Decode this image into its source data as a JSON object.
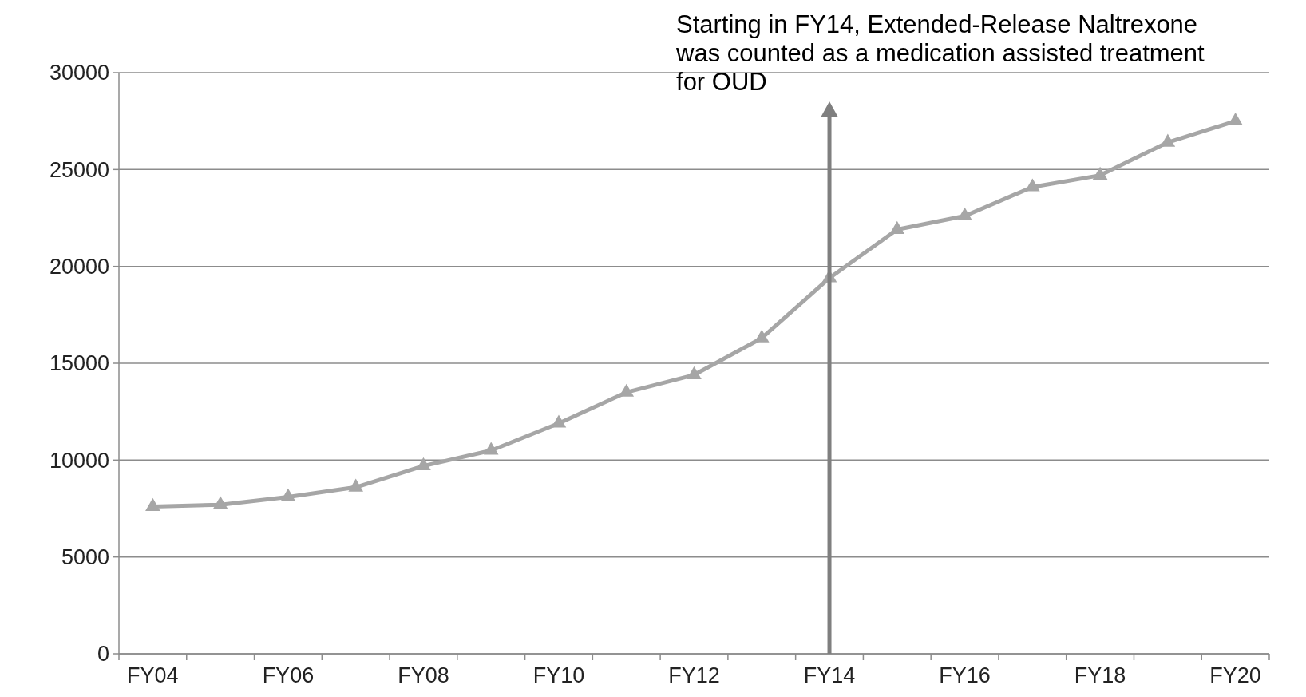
{
  "chart_data": {
    "type": "line",
    "categories": [
      "FY04",
      null,
      "FY06",
      null,
      "FY08",
      null,
      "FY10",
      null,
      "FY12",
      null,
      "FY14",
      null,
      "FY16",
      null,
      "FY18",
      null,
      "FY20"
    ],
    "series": [
      {
        "color": "#a6a6a6",
        "values": [
          7600,
          7700,
          8100,
          8600,
          9700,
          10500,
          11900,
          13500,
          14400,
          16300,
          19400,
          21900,
          22600,
          24100,
          24700,
          26400,
          27500
        ]
      }
    ],
    "ylim": [
      0,
      30000
    ],
    "yticks": [
      0,
      5000,
      10000,
      15000,
      20000,
      25000,
      30000
    ],
    "grid": "y",
    "marker": "triangle",
    "line_style": "solid",
    "ref_lines": [
      {
        "axis": "x",
        "value": "FY14",
        "color": "#7f7f7f"
      }
    ],
    "annotations": [
      "Starting in FY14, Extended-Release Naltrexone was counted as a medication assisted treatment for OUD"
    ]
  }
}
